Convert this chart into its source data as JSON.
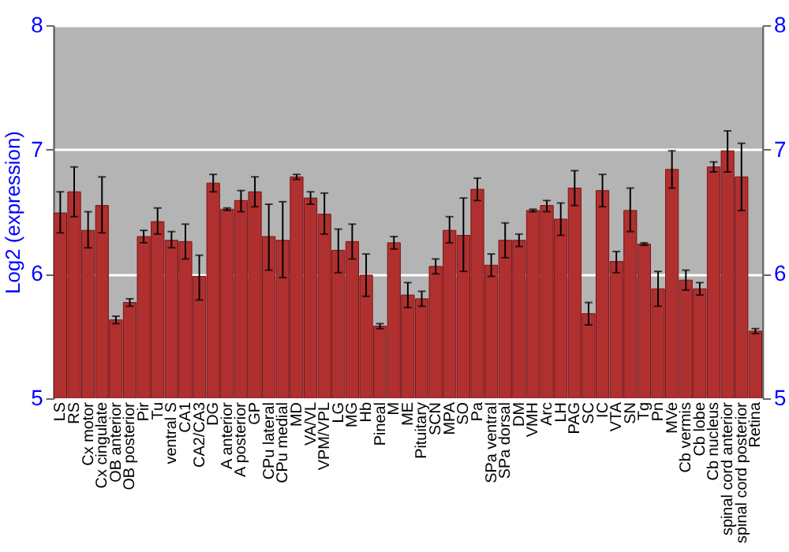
{
  "chart_data": {
    "type": "bar",
    "ylabel": "Log2 (expression)",
    "categories": [
      "LS",
      "RS",
      "Cx motor",
      "Cx cingulate",
      "OB anterior",
      "OB posterior",
      "Pir",
      "Tu",
      "ventral S",
      "CA1",
      "CA2/CA3",
      "DG",
      "A anterior",
      "A posterior",
      "GP",
      "CPu lateral",
      "CPu medial",
      "MD",
      "VA/VL",
      "VPM/VPL",
      "LG",
      "MG",
      "Hb",
      "Pineal",
      "M",
      "ME",
      "Pituitary",
      "SCN",
      "MPA",
      "SO",
      "Pa",
      "SPa ventral",
      "SPa dorsal",
      "DM",
      "VMH",
      "Arc",
      "LH",
      "PAG",
      "SC",
      "IC",
      "VTA",
      "SN",
      "Tg",
      "Pn",
      "MVe",
      "Cb vermis",
      "Cb lobe",
      "Cb nucleus",
      "spinal cord anterior",
      "spinal cord posterior",
      "Retina"
    ],
    "values": [
      6.49,
      6.66,
      6.35,
      6.55,
      5.63,
      5.77,
      6.3,
      6.42,
      6.27,
      6.26,
      5.98,
      6.73,
      6.52,
      6.59,
      6.66,
      6.3,
      6.27,
      6.78,
      6.61,
      6.48,
      6.19,
      6.26,
      5.99,
      5.58,
      6.25,
      5.83,
      5.8,
      6.06,
      6.35,
      6.31,
      6.68,
      6.07,
      6.27,
      6.27,
      6.51,
      6.55,
      6.44,
      6.69,
      5.68,
      6.67,
      6.1,
      6.51,
      6.24,
      5.88,
      6.84,
      5.95,
      5.88,
      6.86,
      6.99,
      6.78,
      5.54
    ],
    "errors": [
      [
        6.33,
        6.66
      ],
      [
        6.46,
        6.86
      ],
      [
        6.21,
        6.5
      ],
      [
        6.33,
        6.78
      ],
      [
        5.6,
        5.66
      ],
      [
        5.74,
        5.8
      ],
      [
        6.25,
        6.35
      ],
      [
        6.32,
        6.53
      ],
      [
        6.21,
        6.34
      ],
      [
        6.12,
        6.4
      ],
      [
        5.79,
        6.15
      ],
      [
        6.66,
        6.8
      ],
      [
        6.51,
        6.53
      ],
      [
        6.5,
        6.67
      ],
      [
        6.54,
        6.78
      ],
      [
        6.03,
        6.56
      ],
      [
        5.97,
        6.58
      ],
      [
        6.76,
        6.8
      ],
      [
        6.56,
        6.66
      ],
      [
        6.32,
        6.65
      ],
      [
        6.01,
        6.36
      ],
      [
        6.12,
        6.4
      ],
      [
        5.82,
        6.16
      ],
      [
        5.56,
        5.6
      ],
      [
        6.2,
        6.3
      ],
      [
        5.73,
        5.93
      ],
      [
        5.74,
        5.86
      ],
      [
        6.0,
        6.12
      ],
      [
        6.25,
        6.46
      ],
      [
        6.02,
        6.61
      ],
      [
        6.59,
        6.77
      ],
      [
        5.98,
        6.16
      ],
      [
        6.13,
        6.41
      ],
      [
        6.22,
        6.32
      ],
      [
        6.5,
        6.52
      ],
      [
        6.5,
        6.59
      ],
      [
        6.31,
        6.57
      ],
      [
        6.55,
        6.83
      ],
      [
        5.59,
        5.77
      ],
      [
        6.54,
        6.8
      ],
      [
        6.01,
        6.18
      ],
      [
        6.34,
        6.69
      ],
      [
        6.23,
        6.25
      ],
      [
        5.74,
        6.02
      ],
      [
        6.69,
        6.99
      ],
      [
        5.87,
        6.03
      ],
      [
        5.83,
        5.93
      ],
      [
        6.82,
        6.9
      ],
      [
        6.82,
        7.15
      ],
      [
        6.51,
        7.05
      ],
      [
        5.52,
        5.56
      ]
    ],
    "color": "#b03030",
    "ylim": [
      5,
      8
    ],
    "yticks": [
      5,
      6,
      7,
      8
    ],
    "y2lim": [
      5,
      8
    ],
    "y2ticks": [
      5,
      6,
      7,
      8
    ],
    "grid": "y"
  }
}
